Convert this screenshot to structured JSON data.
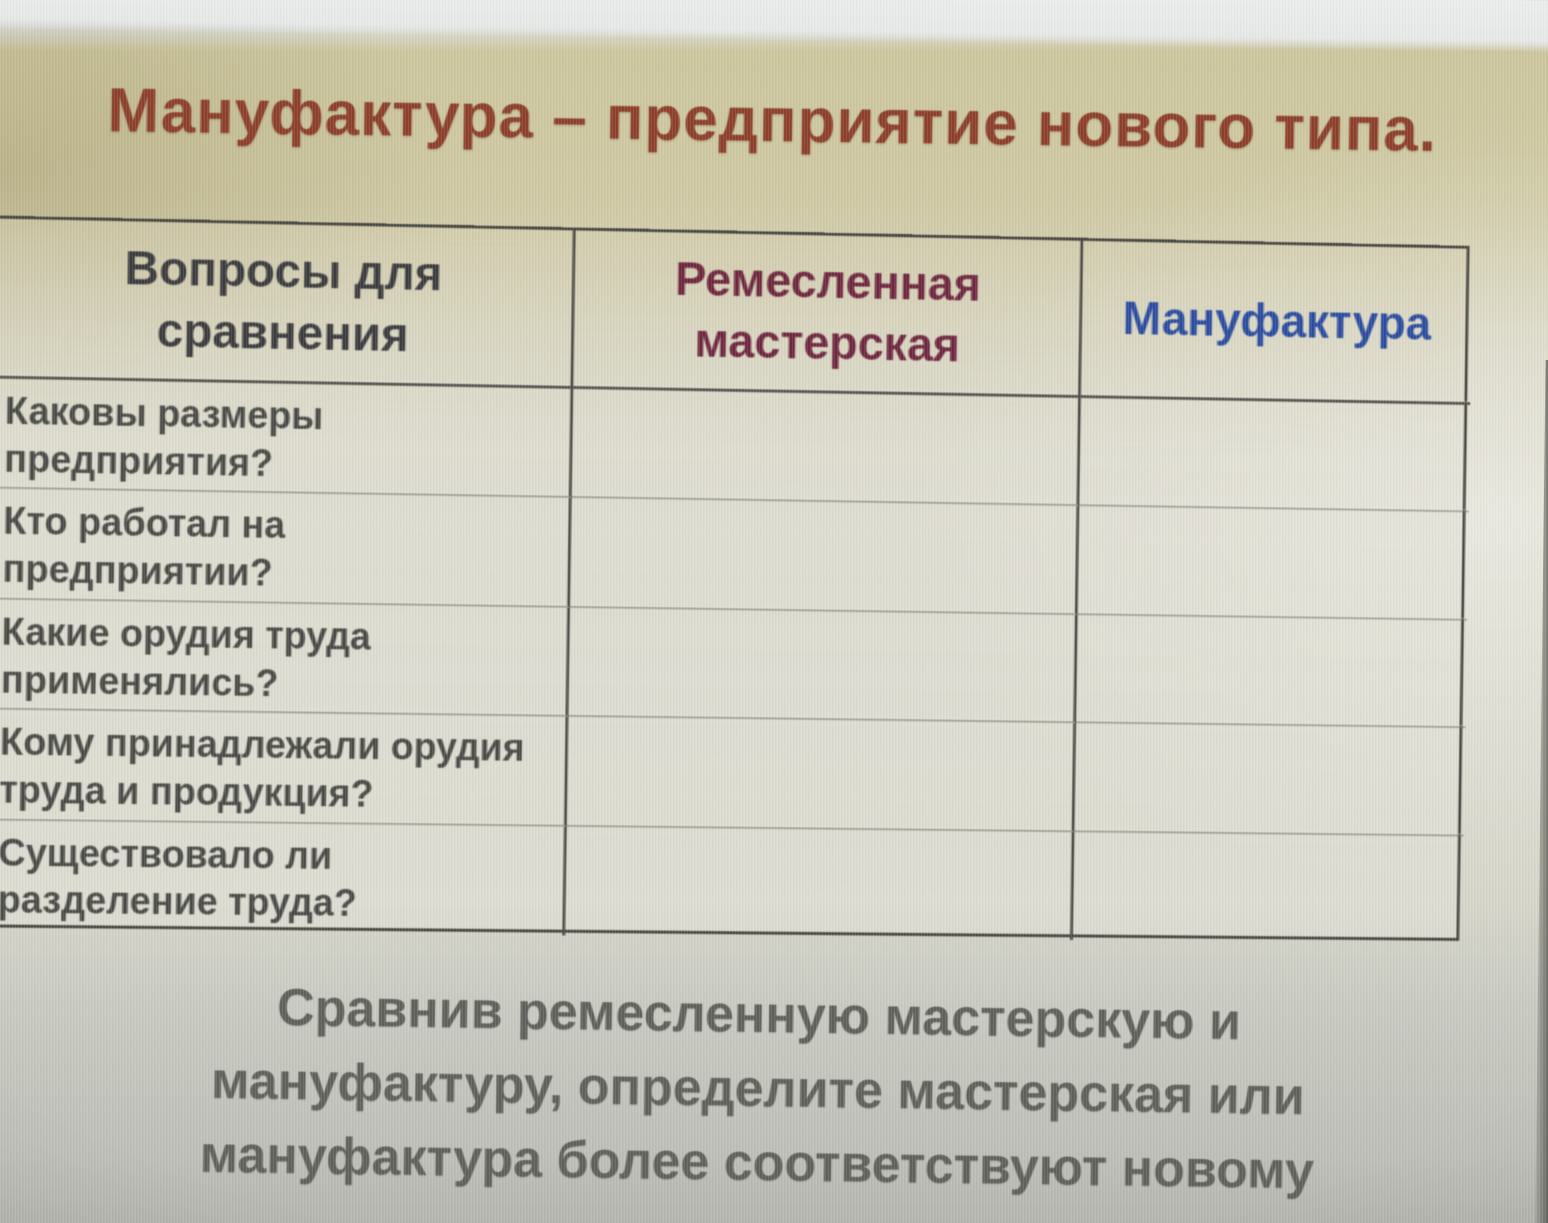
{
  "slide": {
    "title": "Мануфактура – предприятие нового типа.",
    "table": {
      "headers": [
        {
          "label": "Вопросы для\nсравнения"
        },
        {
          "label": "Ремесленная\nмастерская"
        },
        {
          "label": "Мануфактура"
        }
      ],
      "rows": [
        {
          "question": "Каковы размеры\nпредприятия?",
          "workshop": "",
          "manufactory": ""
        },
        {
          "question": "Кто работал на\nпредприятии?",
          "workshop": "",
          "manufactory": ""
        },
        {
          "question": "Какие орудия труда\nприменялись?",
          "workshop": "",
          "manufactory": ""
        },
        {
          "question": "Кому принадлежали орудия\nтруда и продукция?",
          "workshop": "",
          "manufactory": ""
        },
        {
          "question": "Существовало ли\nразделение труда?",
          "workshop": "",
          "manufactory": ""
        }
      ]
    },
    "footer": {
      "lines": [
        "Сравнив ремесленную мастерскую и",
        "мануфактуру, определите мастерская или",
        "мануфактура более соответствуют новому"
      ]
    }
  },
  "colors": {
    "title": "#8d402c",
    "header_questions": "#3d3d40",
    "header_workshop": "#6f2840",
    "header_manufactory": "#2c4da0",
    "row_label": "#4a4a46",
    "footer_text": "#61615c",
    "slide_background_tan": "#cfc9a4",
    "table_border": "#45443f",
    "glare_band": "#eceeed"
  }
}
